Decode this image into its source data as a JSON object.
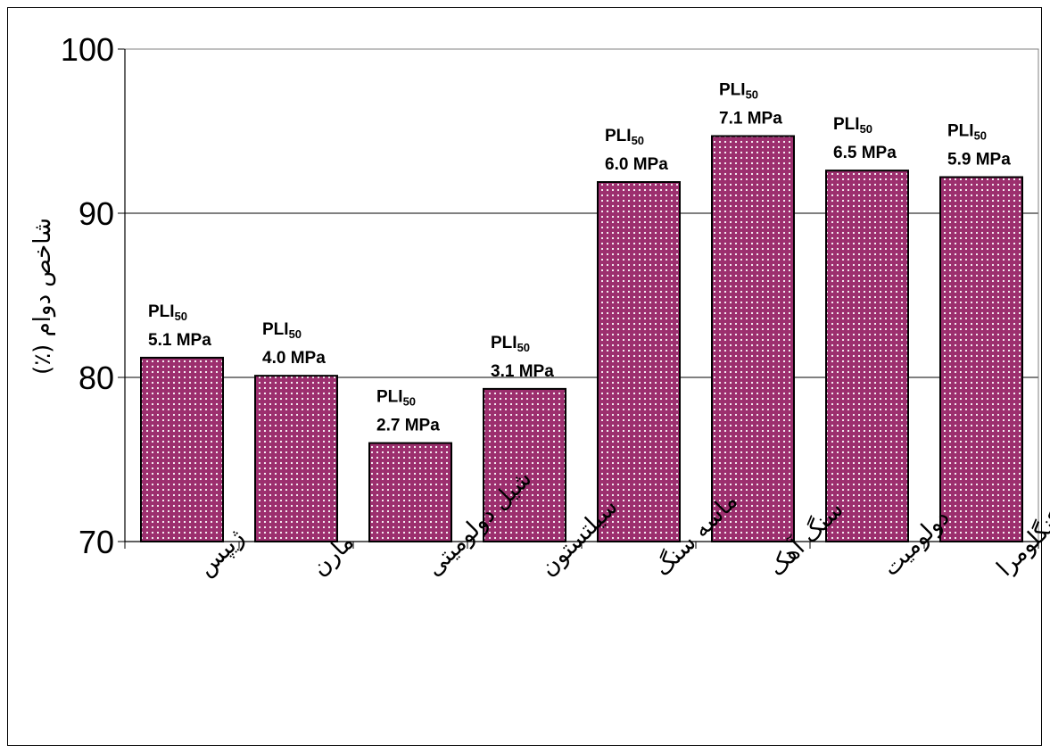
{
  "chart_data": {
    "type": "bar",
    "ylabel": "شاخص دوام (٪)",
    "ylim": [
      70,
      100
    ],
    "yticks": [
      70,
      80,
      90,
      100
    ],
    "grid": true,
    "categories": [
      "ژیپس",
      "مارن",
      "شیل دولومیتی",
      "سیلتستون",
      "ماسه سنگ",
      "سنگ آهک",
      "دولومیت",
      "کنگلومرا"
    ],
    "values": [
      81.2,
      80.1,
      76.0,
      79.3,
      91.9,
      94.7,
      92.6,
      92.2
    ],
    "data_labels": [
      {
        "main": "PLI",
        "sub": "50",
        "value": "5.1 MPa"
      },
      {
        "main": "PLI",
        "sub": "50",
        "value": "4.0 MPa"
      },
      {
        "main": "PLI",
        "sub": "50",
        "value": "2.7 MPa"
      },
      {
        "main": "PLI",
        "sub": "50",
        "value": "3.1 MPa"
      },
      {
        "main": "PLI",
        "sub": "50",
        "value": "6.0 MPa"
      },
      {
        "main": "PLI",
        "sub": "50",
        "value": "7.1 MPa"
      },
      {
        "main": "PLI",
        "sub": "50",
        "value": "6.5 MPa"
      },
      {
        "main": "PLI",
        "sub": "50",
        "value": "5.9 MPa"
      }
    ],
    "bar_color": "#9c2f6e",
    "dot_color": "#ffffff"
  }
}
